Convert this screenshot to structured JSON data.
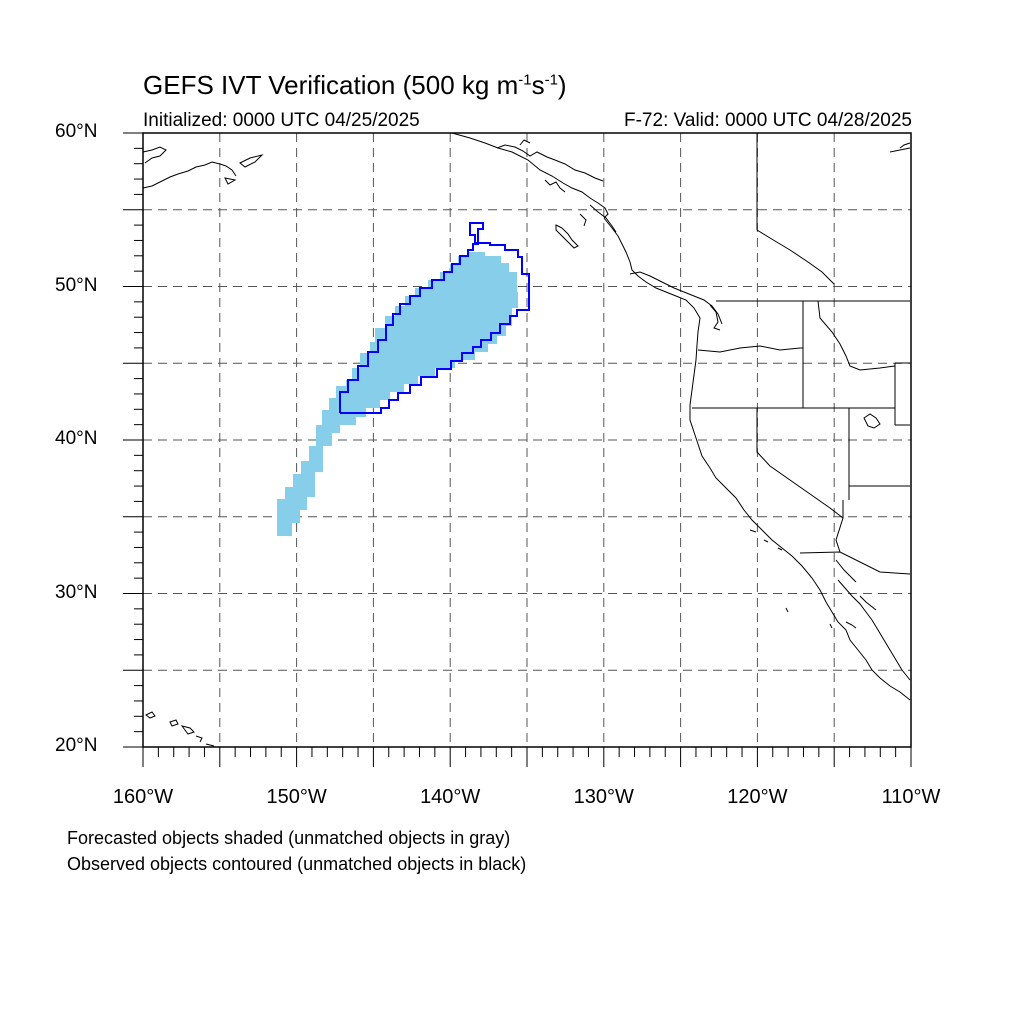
{
  "header": {
    "title_main": "GEFS IVT Verification (500 kg m",
    "title_sup1": "-1",
    "title_mid": "s",
    "title_sup2": "-1",
    "title_end": ")",
    "initialized": "Initialized: 0000 UTC 04/25/2025",
    "valid": "F-72: Valid: 0000 UTC 04/28/2025"
  },
  "map": {
    "extent": {
      "lon_min": -160,
      "lon_max": -110,
      "lat_min": 20,
      "lat_max": 60
    },
    "lat_labels": [
      {
        "text": "60°N",
        "lat": 60
      },
      {
        "text": "50°N",
        "lat": 50
      },
      {
        "text": "40°N",
        "lat": 40
      },
      {
        "text": "30°N",
        "lat": 30
      },
      {
        "text": "20°N",
        "lat": 20
      }
    ],
    "lon_labels": [
      {
        "text": "160°W",
        "lon": -160
      },
      {
        "text": "150°W",
        "lon": -150
      },
      {
        "text": "140°W",
        "lon": -140
      },
      {
        "text": "130°W",
        "lon": -130
      },
      {
        "text": "120°W",
        "lon": -120
      },
      {
        "text": "110°W",
        "lon": -110
      }
    ],
    "gridline_style": "dashed",
    "forecast_color": "#87ceeb",
    "observed_color": "#0000ff"
  },
  "legend": {
    "line1": "Forecasted objects shaded (unmatched objects in gray)",
    "line2": "Observed objects contoured (unmatched objects in black)"
  }
}
